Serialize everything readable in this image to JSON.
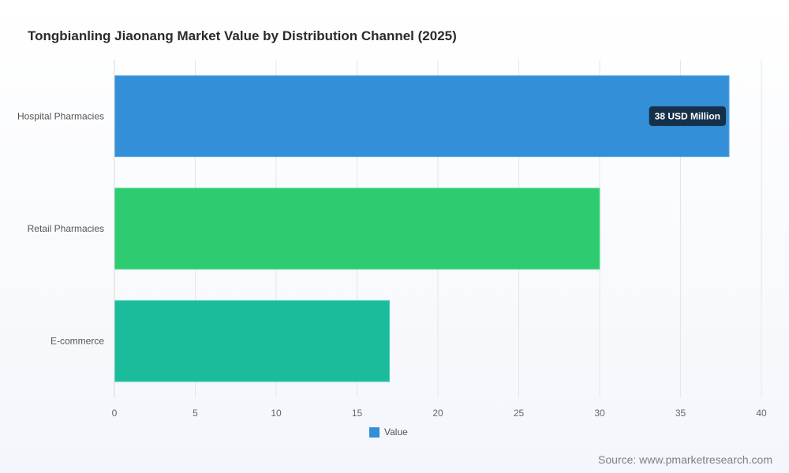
{
  "chart_data": {
    "type": "bar",
    "orientation": "horizontal",
    "title": "Tongbianling Jiaonang Market Value by Distribution Channel (2025)",
    "categories": [
      "Hospital Pharmacies",
      "Retail Pharmacies",
      "E-commerce"
    ],
    "series": [
      {
        "name": "Value",
        "values": [
          38,
          30,
          17
        ]
      }
    ],
    "bar_colors": [
      "#3390d8",
      "#2ecc71",
      "#1abc9c"
    ],
    "bar_borders": [
      "#5aa6e0",
      "#5cd68e",
      "#4ccbb0"
    ],
    "xlim": [
      0,
      40
    ],
    "xticks": [
      "0",
      "5",
      "10",
      "15",
      "20",
      "25",
      "30",
      "35",
      "40"
    ],
    "xlabel": "",
    "ylabel": "",
    "grid": true,
    "legend_position": "bottom",
    "annotation": {
      "category": "Hospital Pharmacies",
      "text": "38 USD Million"
    }
  },
  "legend": {
    "label": "Value",
    "color": "#3390d8"
  },
  "source": "Source: www.pmarketresearch.com"
}
